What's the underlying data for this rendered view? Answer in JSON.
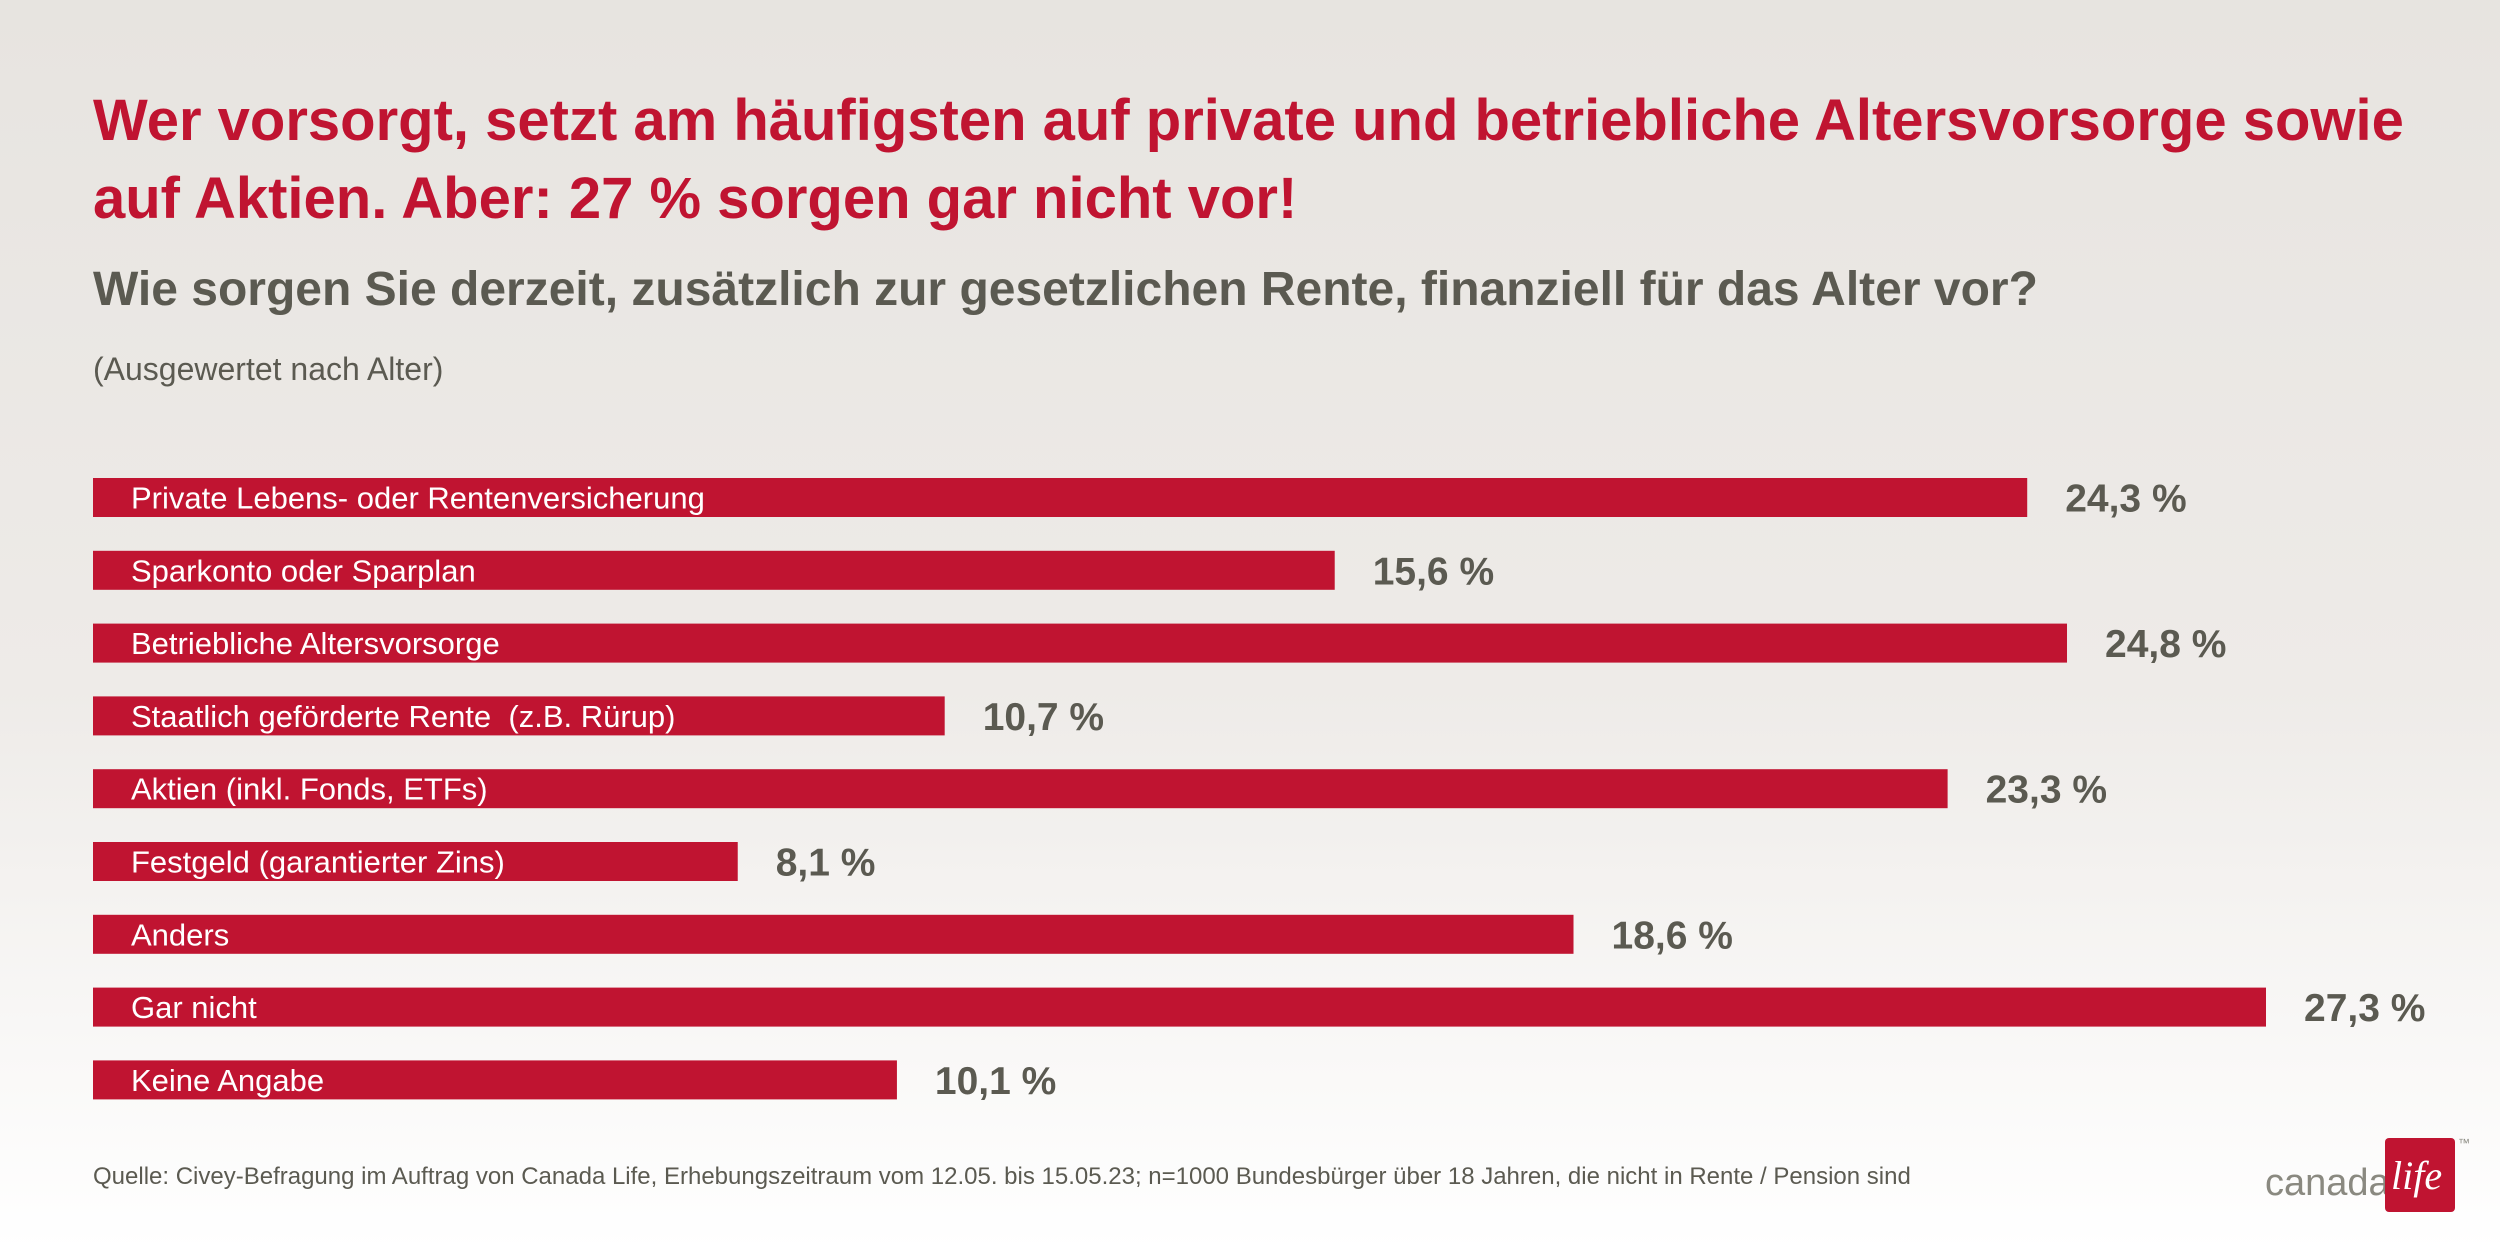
{
  "title": "Wer vorsorgt, setzt am häufigsten auf private und betriebliche Altersvorsorge sowie auf Aktien. Aber: 27 % sorgen gar nicht vor!",
  "subtitle": "Wie sorgen Sie derzeit, zusätzlich zur gesetzlichen Rente, finanziell für das Alter vor?",
  "note": "(Ausgewertet nach Alter)",
  "source": "Quelle: Civey-Befragung im Auftrag von Canada Life, Erhebungszeitraum vom 12.05. bis 15.05.23; n=1000 Bundesbürger über 18 Jahren, die nicht in Rente / Pension sind",
  "logo": {
    "text": "canada",
    "box_text": "life",
    "tm": "™"
  },
  "colors": {
    "bar": "#c01431",
    "title": "#c01431",
    "text": "#5b5a51",
    "bar_label": "#ffffff"
  },
  "chart_data": {
    "type": "bar",
    "orientation": "horizontal",
    "categories": [
      "Private Lebens- oder Rentenversicherung",
      "Sparkonto oder Sparplan",
      "Betriebliche Altersvorsorge",
      "Staatlich geförderte Rente  (z.B. Rürup)",
      "Aktien (inkl. Fonds, ETFs)",
      "Festgeld (garantierter Zins)",
      "Anders",
      "Gar nicht",
      "Keine Angabe"
    ],
    "values": [
      24.3,
      15.6,
      24.8,
      10.7,
      23.3,
      8.1,
      18.6,
      27.3,
      10.1
    ],
    "value_labels": [
      "24,3 %",
      "15,6 %",
      "24,8 %",
      "10,7 %",
      "23,3 %",
      "8,1 %",
      "18,6 %",
      "27,3 %",
      "10,1 %"
    ],
    "unit": "%",
    "xlim": [
      0,
      27.3
    ],
    "grid": false,
    "legend": "none"
  }
}
